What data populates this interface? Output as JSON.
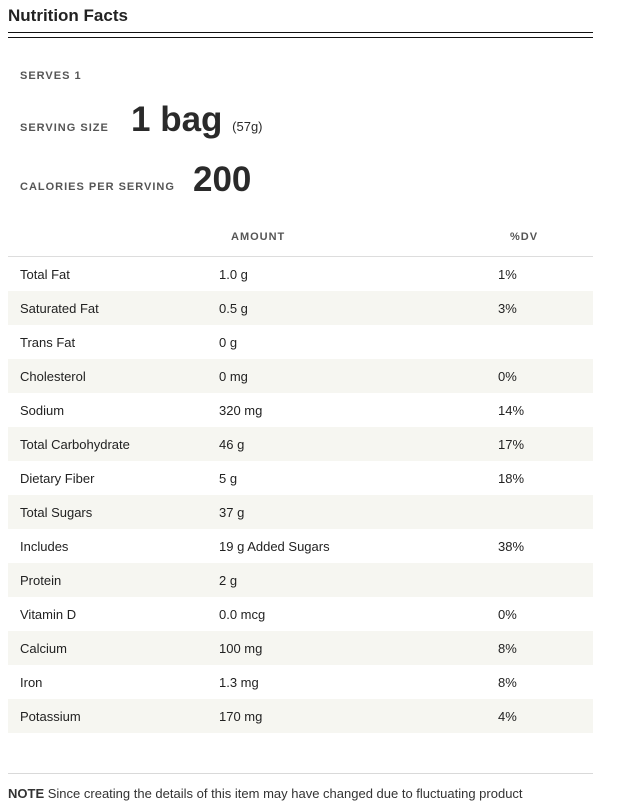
{
  "title": "Nutrition Facts",
  "serves": "SERVES 1",
  "serving_size": {
    "label": "SERVING SIZE",
    "value": "1 bag",
    "unit": "(57g)"
  },
  "calories": {
    "label": "CALORIES PER SERVING",
    "value": "200"
  },
  "table": {
    "headers": [
      "",
      "AMOUNT",
      "%DV"
    ],
    "rows": [
      [
        "Total Fat",
        "1.0 g",
        "1%"
      ],
      [
        "Saturated Fat",
        "0.5 g",
        "3%"
      ],
      [
        "Trans Fat",
        "0 g",
        ""
      ],
      [
        "Cholesterol",
        "0 mg",
        "0%"
      ],
      [
        "Sodium",
        "320 mg",
        "14%"
      ],
      [
        "Total Carbohydrate",
        "46 g",
        "17%"
      ],
      [
        "Dietary Fiber",
        "5 g",
        "18%"
      ],
      [
        "Total Sugars",
        "37 g",
        ""
      ],
      [
        "Includes",
        "19 g Added Sugars",
        "38%"
      ],
      [
        "Protein",
        "2 g",
        ""
      ],
      [
        "Vitamin D",
        "0.0 mcg",
        "0%"
      ],
      [
        "Calcium",
        "100 mg",
        "8%"
      ],
      [
        "Iron",
        "1.3 mg",
        "8%"
      ],
      [
        "Potassium",
        "170 mg",
        "4%"
      ]
    ]
  },
  "note": {
    "label": "NOTE",
    "text": "Since creating the details of this item may have changed due to fluctuating product"
  }
}
